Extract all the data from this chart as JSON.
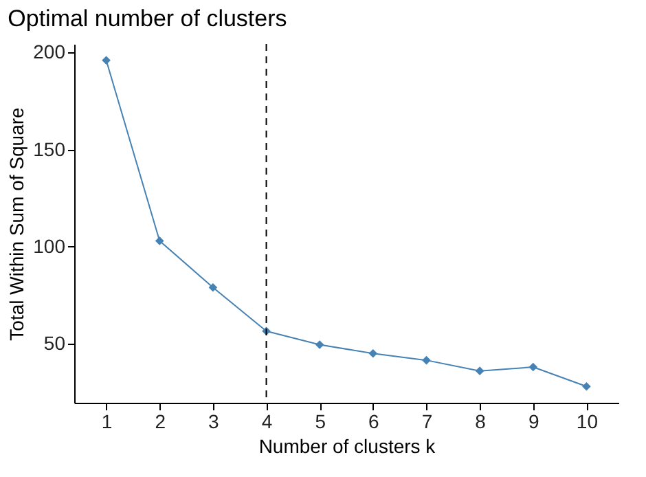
{
  "chart_data": {
    "type": "line",
    "title": "Optimal number of clusters",
    "xlabel": "Number of clusters k",
    "ylabel": "Total Within Sum of Square",
    "categories": [
      "1",
      "2",
      "3",
      "4",
      "5",
      "6",
      "7",
      "8",
      "9",
      "10"
    ],
    "series": [
      {
        "color": "#4682b4",
        "values": [
          196,
          103,
          79,
          56.5,
          49.5,
          45,
          41.5,
          36,
          38,
          28
        ]
      }
    ],
    "ylim": [
      19.6,
      204.4
    ],
    "yticks": [
      50,
      100,
      150,
      200
    ],
    "grid": false,
    "marker": "diamond",
    "line_style": "solid",
    "ref_lines": [
      {
        "axis": "x",
        "value": "4",
        "color": "#000000",
        "line_style": "dashed"
      }
    ]
  }
}
